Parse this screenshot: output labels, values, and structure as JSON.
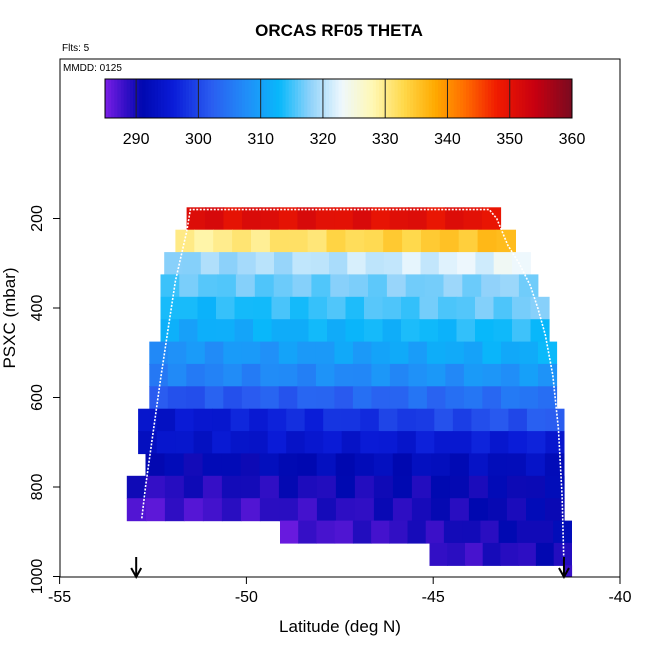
{
  "chart_data": {
    "type": "heatmap",
    "title": "ORCAS RF05 THETA",
    "flights_label": "Flts: 5",
    "date_label": "MMDD: 0125",
    "xlabel": "Latitude (deg N)",
    "ylabel": "PSXC (mbar)",
    "xlim": [
      -55,
      -40
    ],
    "ylim": [
      1000,
      0
    ],
    "x_ticks": [
      -55,
      -50,
      -45,
      -40
    ],
    "x_tick_labels": [
      "-55",
      "-50",
      "-45",
      "-40"
    ],
    "y_ticks": [
      200,
      400,
      600,
      800,
      1000
    ],
    "y_tick_labels": [
      "200",
      "400",
      "600",
      "800",
      "1000"
    ],
    "colorbar": {
      "range": [
        285,
        360
      ],
      "ticks": [
        290,
        300,
        310,
        320,
        330,
        340,
        350,
        360
      ],
      "tick_labels": [
        "290",
        "300",
        "310",
        "320",
        "330",
        "340",
        "350",
        "360"
      ],
      "stops": [
        {
          "v": 285,
          "c": "#7a1ee6"
        },
        {
          "v": 288,
          "c": "#3a10c8"
        },
        {
          "v": 291,
          "c": "#0008b0"
        },
        {
          "v": 296,
          "c": "#0a1cd8"
        },
        {
          "v": 302,
          "c": "#2a5cf0"
        },
        {
          "v": 308,
          "c": "#2090f8"
        },
        {
          "v": 313,
          "c": "#08b8fa"
        },
        {
          "v": 318,
          "c": "#90d2fa"
        },
        {
          "v": 323,
          "c": "#eef8fd"
        },
        {
          "v": 328,
          "c": "#fff8b4"
        },
        {
          "v": 333,
          "c": "#ffd84a"
        },
        {
          "v": 338,
          "c": "#ffaa00"
        },
        {
          "v": 343,
          "c": "#ff6a00"
        },
        {
          "v": 348,
          "c": "#f01a00"
        },
        {
          "v": 354,
          "c": "#c80010"
        },
        {
          "v": 360,
          "c": "#7a0a20"
        }
      ]
    },
    "bin_size_mbar": 50,
    "rows": [
      {
        "p0": 175,
        "p1": 225,
        "lat0": -51.6,
        "lat1": -43.2,
        "v0": 351,
        "v1": 350
      },
      {
        "p0": 225,
        "p1": 275,
        "lat0": -51.9,
        "lat1": -42.8,
        "v0": 329,
        "v1": 336
      },
      {
        "p0": 275,
        "p1": 325,
        "lat0": -52.2,
        "lat1": -42.4,
        "v0": 318,
        "v1": 323
      },
      {
        "p0": 325,
        "p1": 375,
        "lat0": -52.3,
        "lat1": -42.2,
        "v0": 316,
        "v1": 318
      },
      {
        "p0": 375,
        "p1": 425,
        "lat0": -52.3,
        "lat1": -41.9,
        "v0": 313,
        "v1": 317
      },
      {
        "p0": 425,
        "p1": 475,
        "lat0": -52.3,
        "lat1": -41.9,
        "v0": 311,
        "v1": 314
      },
      {
        "p0": 475,
        "p1": 525,
        "lat0": -52.6,
        "lat1": -41.7,
        "v0": 308,
        "v1": 312
      },
      {
        "p0": 525,
        "p1": 575,
        "lat0": -52.6,
        "lat1": -41.7,
        "v0": 306,
        "v1": 309
      },
      {
        "p0": 575,
        "p1": 625,
        "lat0": -52.6,
        "lat1": -41.7,
        "v0": 301,
        "v1": 305
      },
      {
        "p0": 625,
        "p1": 675,
        "lat0": -52.9,
        "lat1": -41.5,
        "v0": 294,
        "v1": 302
      },
      {
        "p0": 675,
        "p1": 725,
        "lat0": -52.9,
        "lat1": -41.5,
        "v0": 294,
        "v1": 296
      },
      {
        "p0": 725,
        "p1": 775,
        "lat0": -52.7,
        "lat1": -41.5,
        "v0": 291,
        "v1": 293
      },
      {
        "p0": 775,
        "p1": 825,
        "lat0": -53.2,
        "lat1": -41.5,
        "v0": 289,
        "v1": 291
      },
      {
        "p0": 825,
        "p1": 875,
        "lat0": -53.2,
        "lat1": -41.5,
        "v0": 287,
        "v1": 291
      },
      {
        "p0": 875,
        "p1": 925,
        "lat0": -49.1,
        "lat1": -41.3,
        "v0": 287,
        "v1": 291
      },
      {
        "p0": 925,
        "p1": 975,
        "lat0": -45.1,
        "lat1": -41.3,
        "v0": 288,
        "v1": 290
      },
      {
        "p0": 975,
        "p1": 1000,
        "lat0": -41.5,
        "lat1": -41.3,
        "v0": 287,
        "v1": 287
      }
    ],
    "flight_track": {
      "color": "#ffffff",
      "lat": [
        -52.8,
        -52.7,
        -52.5,
        -52.3,
        -52.1,
        -51.9,
        -51.6,
        -51.5,
        -43.5,
        -43.3,
        -43.0,
        -42.7,
        -42.4,
        -42.2,
        -42.0,
        -41.8,
        -41.65,
        -41.55,
        -41.5
      ],
      "psxc": [
        870,
        800,
        680,
        560,
        450,
        340,
        230,
        180,
        180,
        200,
        260,
        300,
        350,
        400,
        460,
        550,
        670,
        820,
        980
      ]
    },
    "arrows": [
      {
        "lat": -52.95,
        "color": "#000000"
      },
      {
        "lat": -41.5,
        "color": "#000000"
      }
    ]
  }
}
